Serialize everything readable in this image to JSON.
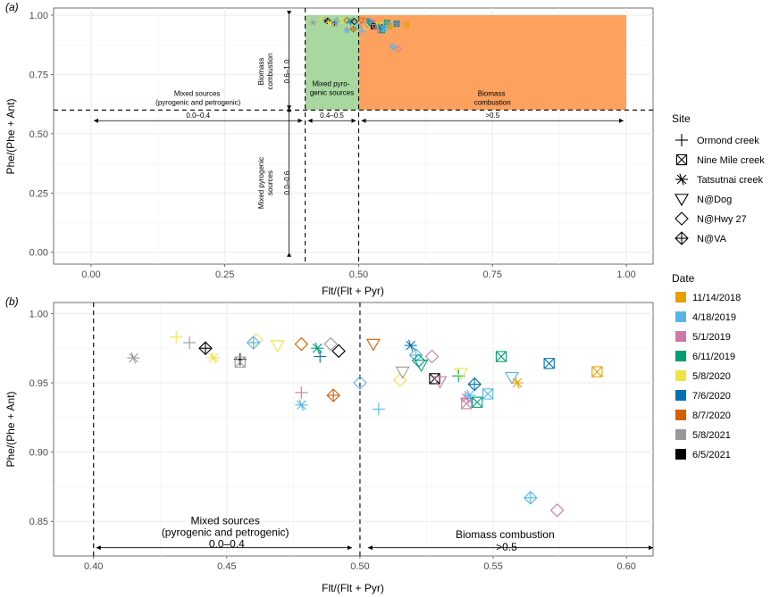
{
  "colors": {
    "11/14/2018": "#E69F00",
    "4/18/2019": "#56B4E9",
    "5/1/2019": "#CC79A7",
    "6/11/2019": "#009E73",
    "5/8/2020": "#F0E442",
    "7/6/2020": "#0072B2",
    "8/7/2020": "#D55E00",
    "5/8/2021": "#999999",
    "6/5/2021": "#000000",
    "panel_bg": "#ffffff",
    "grid": "#ebebeb",
    "green_region": "#a8d8a0",
    "orange_region": "#fca25e"
  },
  "legend": {
    "site_title": "Site",
    "sites": [
      {
        "label": "Ormond creek",
        "shape": "plus"
      },
      {
        "label": "Nine Mile creek",
        "shape": "boxx"
      },
      {
        "label": "Tatsutnai creek",
        "shape": "asterisk"
      },
      {
        "label": "N@Dog",
        "shape": "tridown"
      },
      {
        "label": "N@Hwy 27",
        "shape": "diamond"
      },
      {
        "label": "N@VA",
        "shape": "diamondplus"
      }
    ],
    "date_title": "Date",
    "dates": [
      "11/14/2018",
      "4/18/2019",
      "5/1/2019",
      "6/11/2019",
      "5/8/2020",
      "7/6/2020",
      "8/7/2020",
      "5/8/2021",
      "6/5/2021"
    ]
  },
  "chart_data": [
    {
      "panel_label": "(a)",
      "type": "scatter",
      "xlabel": "Flt/(Flt + Pyr)",
      "ylabel": "Phe/(Phe + Ant)",
      "xlim": [
        -0.07,
        1.05
      ],
      "ylim": [
        -0.05,
        1.03
      ],
      "x_ticks": [
        0,
        0.25,
        0.5,
        0.75,
        1.0
      ],
      "x_tick_labels": [
        "0.00",
        "0.25",
        "0.50",
        "0.75",
        "1.00"
      ],
      "y_ticks": [
        0,
        0.25,
        0.5,
        0.75,
        1.0
      ],
      "y_tick_labels": [
        "0.00",
        "0.25",
        "0.50",
        "0.75",
        "1.00"
      ],
      "regions": [
        {
          "name": "mixed-pyrogenic-region",
          "x": [
            0.4,
            0.5
          ],
          "y": [
            0.6,
            1.0
          ],
          "color": "green_region"
        },
        {
          "name": "biomass-combustion-region",
          "x": [
            0.5,
            1.0
          ],
          "y": [
            0.6,
            1.0
          ],
          "color": "orange_region"
        }
      ],
      "vlines": [
        0.4,
        0.5
      ],
      "hlines": [
        0.6
      ],
      "annotations": [
        {
          "name": "mixed-sources",
          "lines": [
            "Mixed sources",
            "(pyrogenic and petrogenic)"
          ],
          "x": 0.2,
          "y": 0.66
        },
        {
          "name": "mixed-pyro-sources",
          "lines": [
            "Mixed pyro-",
            "genic sources"
          ],
          "x": 0.45,
          "y": 0.7
        },
        {
          "name": "biomass-combustion",
          "lines": [
            "Biomass",
            "combustion"
          ],
          "x": 0.75,
          "y": 0.66
        }
      ],
      "h_arrows": [
        {
          "name": "range-0-04",
          "x1": 0.0,
          "x2": 0.4,
          "y": 0.555,
          "label": "0.0–0.4"
        },
        {
          "name": "range-04-05",
          "x1": 0.4,
          "x2": 0.5,
          "y": 0.555,
          "label": "0.4–0.5"
        },
        {
          "name": "range-gt-05",
          "x1": 0.5,
          "x2": 1.0,
          "y": 0.555,
          "label": ">0.5"
        }
      ],
      "v_arrows": [
        {
          "name": "range-06-10",
          "x": 0.37,
          "y1": 0.6,
          "y2": 1.0,
          "lines": [
            "Biomass",
            "combustion",
            "0.6–1.0"
          ]
        },
        {
          "name": "range-00-06",
          "x": 0.37,
          "y1": 0.0,
          "y2": 0.6,
          "lines": [
            "Mixed pyrogenic",
            "sources",
            "0.0–0.6"
          ]
        }
      ]
    },
    {
      "panel_label": "(b)",
      "type": "scatter",
      "xlabel": "Flt/(Flt + Pyr)",
      "ylabel": "Phe/(Phe + Ant)",
      "xlim": [
        0.385,
        0.61
      ],
      "ylim": [
        0.825,
        1.008
      ],
      "x_ticks": [
        0.4,
        0.45,
        0.5,
        0.55,
        0.6
      ],
      "x_tick_labels": [
        "0.40",
        "0.45",
        "0.50",
        "0.55",
        "0.60"
      ],
      "y_ticks": [
        0.85,
        0.9,
        0.95,
        1.0
      ],
      "y_tick_labels": [
        "0.85",
        "0.90",
        "0.95",
        "1.00"
      ],
      "vlines": [
        0.4,
        0.5
      ],
      "annotations": [
        {
          "name": "mixed-sources",
          "lines": [
            "Mixed sources",
            "(pyrogenic and petrogenic)",
            "0.0–0.4"
          ],
          "x": 0.45,
          "y": 0.848
        },
        {
          "name": "biomass-combustion",
          "lines": [
            "Biomass combustion",
            ">0.5"
          ],
          "x": 0.555,
          "y": 0.838
        }
      ],
      "h_arrows": [
        {
          "name": "range-0-04",
          "x1": 0.401,
          "x2": 0.497,
          "y": 0.831
        },
        {
          "name": "range-gt-05",
          "x1": 0.503,
          "x2": 0.61,
          "y": 0.831
        }
      ]
    }
  ],
  "points": [
    {
      "x": 0.415,
      "y": 0.968,
      "site": "Tatsutnai creek",
      "date": "5/8/2021"
    },
    {
      "x": 0.431,
      "y": 0.983,
      "site": "Ormond creek",
      "date": "5/8/2020"
    },
    {
      "x": 0.436,
      "y": 0.979,
      "site": "Ormond creek",
      "date": "5/8/2021"
    },
    {
      "x": 0.442,
      "y": 0.975,
      "site": "N@VA",
      "date": "6/5/2021"
    },
    {
      "x": 0.445,
      "y": 0.968,
      "site": "Tatsutnai creek",
      "date": "5/8/2020"
    },
    {
      "x": 0.455,
      "y": 0.967,
      "site": "Ormond creek",
      "date": "6/5/2021"
    },
    {
      "x": 0.455,
      "y": 0.965,
      "site": "Nine Mile creek",
      "date": "5/8/2021"
    },
    {
      "x": 0.461,
      "y": 0.981,
      "site": "N@Hwy 27",
      "date": "5/8/2020"
    },
    {
      "x": 0.46,
      "y": 0.979,
      "site": "N@VA",
      "date": "4/18/2019"
    },
    {
      "x": 0.469,
      "y": 0.977,
      "site": "N@Dog",
      "date": "5/8/2020"
    },
    {
      "x": 0.478,
      "y": 0.978,
      "site": "N@Hwy 27",
      "date": "8/7/2020"
    },
    {
      "x": 0.478,
      "y": 0.943,
      "site": "Ormond creek",
      "date": "5/1/2019"
    },
    {
      "x": 0.478,
      "y": 0.934,
      "site": "Tatsutnai creek",
      "date": "4/18/2019"
    },
    {
      "x": 0.484,
      "y": 0.975,
      "site": "Tatsutnai creek",
      "date": "6/11/2019"
    },
    {
      "x": 0.485,
      "y": 0.969,
      "site": "Ormond creek",
      "date": "7/6/2020"
    },
    {
      "x": 0.489,
      "y": 0.978,
      "site": "N@Hwy 27",
      "date": "5/8/2021"
    },
    {
      "x": 0.49,
      "y": 0.941,
      "site": "N@VA",
      "date": "8/7/2020"
    },
    {
      "x": 0.492,
      "y": 0.973,
      "site": "N@Hwy 27",
      "date": "6/5/2021"
    },
    {
      "x": 0.5,
      "y": 0.95,
      "site": "N@Hwy 27",
      "date": "4/18/2019"
    },
    {
      "x": 0.505,
      "y": 0.978,
      "site": "N@Dog",
      "date": "8/7/2020"
    },
    {
      "x": 0.507,
      "y": 0.931,
      "site": "Ormond creek",
      "date": "4/18/2019"
    },
    {
      "x": 0.515,
      "y": 0.952,
      "site": "N@Hwy 27",
      "date": "5/8/2020"
    },
    {
      "x": 0.516,
      "y": 0.958,
      "site": "N@Dog",
      "date": "5/8/2021"
    },
    {
      "x": 0.519,
      "y": 0.977,
      "site": "Tatsutnai creek",
      "date": "7/6/2020"
    },
    {
      "x": 0.521,
      "y": 0.97,
      "site": "N@VA",
      "date": "4/18/2019"
    },
    {
      "x": 0.522,
      "y": 0.966,
      "site": "N@Hwy 27",
      "date": "6/11/2019"
    },
    {
      "x": 0.523,
      "y": 0.963,
      "site": "N@Dog",
      "date": "6/11/2019"
    },
    {
      "x": 0.527,
      "y": 0.969,
      "site": "N@Hwy 27",
      "date": "5/1/2019"
    },
    {
      "x": 0.528,
      "y": 0.953,
      "site": "Nine Mile creek",
      "date": "6/5/2021"
    },
    {
      "x": 0.53,
      "y": 0.951,
      "site": "N@Dog",
      "date": "5/1/2019"
    },
    {
      "x": 0.537,
      "y": 0.955,
      "site": "Ormond creek",
      "date": "6/11/2019"
    },
    {
      "x": 0.538,
      "y": 0.957,
      "site": "N@Dog",
      "date": "5/8/2020"
    },
    {
      "x": 0.54,
      "y": 0.939,
      "site": "Tatsutnai creek",
      "date": "5/1/2019"
    },
    {
      "x": 0.54,
      "y": 0.935,
      "site": "Nine Mile creek",
      "date": "5/1/2019"
    },
    {
      "x": 0.541,
      "y": 0.941,
      "site": "Tatsutnai creek",
      "date": "4/18/2019"
    },
    {
      "x": 0.543,
      "y": 0.949,
      "site": "N@VA",
      "date": "7/6/2020"
    },
    {
      "x": 0.544,
      "y": 0.936,
      "site": "Nine Mile creek",
      "date": "6/11/2019"
    },
    {
      "x": 0.548,
      "y": 0.942,
      "site": "Nine Mile creek",
      "date": "4/18/2019"
    },
    {
      "x": 0.553,
      "y": 0.969,
      "site": "Nine Mile creek",
      "date": "6/11/2019"
    },
    {
      "x": 0.557,
      "y": 0.954,
      "site": "N@Dog",
      "date": "4/18/2019"
    },
    {
      "x": 0.559,
      "y": 0.95,
      "site": "Tatsutnai creek",
      "date": "11/14/2018"
    },
    {
      "x": 0.564,
      "y": 0.867,
      "site": "N@VA",
      "date": "4/18/2019"
    },
    {
      "x": 0.571,
      "y": 0.964,
      "site": "Nine Mile creek",
      "date": "7/6/2020"
    },
    {
      "x": 0.574,
      "y": 0.858,
      "site": "N@Hwy 27",
      "date": "5/1/2019"
    },
    {
      "x": 0.589,
      "y": 0.958,
      "site": "Nine Mile creek",
      "date": "11/14/2018"
    }
  ]
}
